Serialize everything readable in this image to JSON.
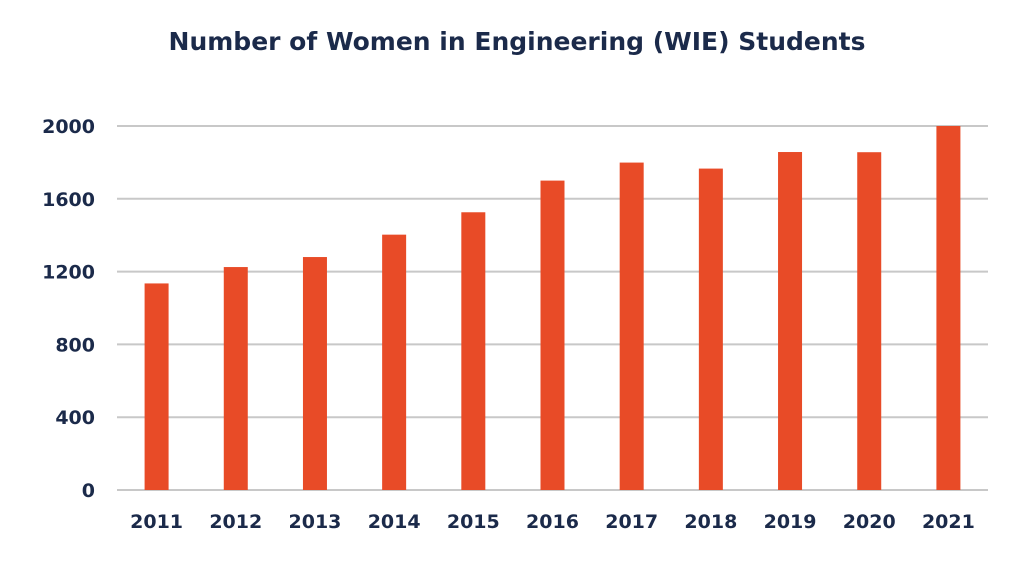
{
  "chart_data": {
    "type": "bar",
    "title": "Number of Women in Engineering (WIE) Students",
    "xlabel": "",
    "ylabel": "",
    "categories": [
      "2011",
      "2012",
      "2013",
      "2014",
      "2015",
      "2016",
      "2017",
      "2018",
      "2019",
      "2020",
      "2021"
    ],
    "values": [
      1135,
      1225,
      1280,
      1403,
      1526,
      1700,
      1799,
      1766,
      1857,
      1856,
      2000
    ],
    "ylim": [
      0,
      2000
    ],
    "yticks": [
      0,
      400,
      800,
      1200,
      1600,
      2000
    ],
    "grid": true,
    "legend": "none",
    "colors": {
      "bar": "#e84b27",
      "text": "#1b2a4a",
      "grid": "#c8c8c8"
    }
  }
}
